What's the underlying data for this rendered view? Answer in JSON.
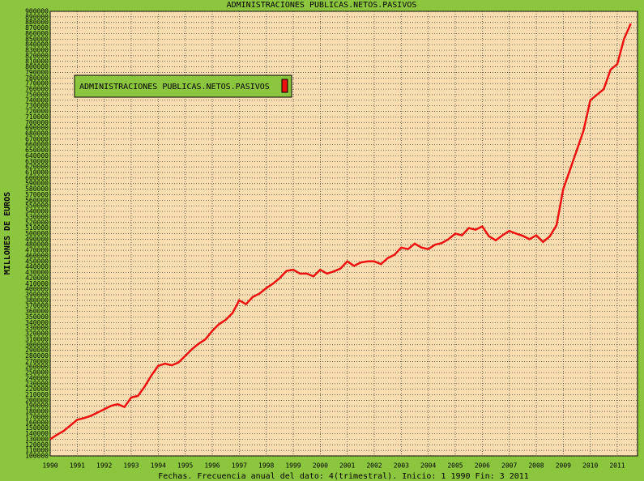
{
  "chart_data": {
    "type": "line",
    "title": "ADMINISTRACIONES PUBLICAS.NETOS.PASIVOS",
    "ylabel": "MILLONES DE EUROS",
    "xlabel": "Fechas. Frecuencia anual del dato: 4(trimestral). Inicio: 1 1990 Fin: 3 2011",
    "x": [
      1990,
      1990.25,
      1990.5,
      1990.75,
      1991,
      1991.25,
      1991.5,
      1991.75,
      1992,
      1992.25,
      1992.5,
      1992.75,
      1993,
      1993.25,
      1993.5,
      1993.75,
      1994,
      1994.25,
      1994.5,
      1994.75,
      1995,
      1995.25,
      1995.5,
      1995.75,
      1996,
      1996.25,
      1996.5,
      1996.75,
      1997,
      1997.25,
      1997.5,
      1997.75,
      1998,
      1998.25,
      1998.5,
      1998.75,
      1999,
      1999.25,
      1999.5,
      1999.75,
      2000,
      2000.25,
      2000.5,
      2000.75,
      2001,
      2001.25,
      2001.5,
      2001.75,
      2002,
      2002.25,
      2002.5,
      2002.75,
      2003,
      2003.25,
      2003.5,
      2003.75,
      2004,
      2004.25,
      2004.5,
      2004.75,
      2005,
      2005.25,
      2005.5,
      2005.75,
      2006,
      2006.25,
      2006.5,
      2006.75,
      2007,
      2007.25,
      2007.5,
      2007.75,
      2008,
      2008.25,
      2008.5,
      2008.75,
      2009,
      2009.25,
      2009.5,
      2009.75,
      2010,
      2010.25,
      2010.5,
      2010.75,
      2011,
      2011.25,
      2011.5
    ],
    "series": [
      {
        "name": "ADMINISTRACIONES PUBLICAS.NETOS.PASIVOS",
        "color": "#ee1111",
        "values": [
          130000,
          138000,
          145000,
          155000,
          165000,
          168000,
          172000,
          178000,
          184000,
          190000,
          193000,
          188000,
          205000,
          208000,
          225000,
          245000,
          262000,
          266000,
          263000,
          268000,
          280000,
          292000,
          302000,
          310000,
          325000,
          337000,
          345000,
          357000,
          380000,
          373000,
          386000,
          392000,
          402000,
          410000,
          420000,
          433000,
          435000,
          428000,
          428000,
          423000,
          435000,
          428000,
          432000,
          437000,
          450000,
          442000,
          448000,
          450000,
          450000,
          445000,
          456000,
          462000,
          475000,
          472000,
          482000,
          475000,
          472000,
          480000,
          483000,
          490000,
          500000,
          497000,
          510000,
          507000,
          513000,
          495000,
          488000,
          497000,
          505000,
          500000,
          496000,
          490000,
          497000,
          485000,
          495000,
          515000,
          580000,
          615000,
          650000,
          685000,
          740000,
          750000,
          760000,
          795000,
          805000,
          850000,
          878000
        ]
      }
    ],
    "xlim": [
      1990,
      2011.75
    ],
    "xticks": [
      1990,
      1991,
      1992,
      1993,
      1994,
      1995,
      1996,
      1997,
      1998,
      1999,
      2000,
      2001,
      2002,
      2003,
      2004,
      2005,
      2006,
      2007,
      2008,
      2009,
      2010,
      2011
    ],
    "ylim": [
      100000,
      900000
    ],
    "yticks": [
      100000,
      110000,
      120000,
      130000,
      140000,
      150000,
      160000,
      170000,
      180000,
      190000,
      200000,
      210000,
      220000,
      230000,
      240000,
      250000,
      260000,
      270000,
      280000,
      290000,
      300000,
      310000,
      320000,
      330000,
      340000,
      350000,
      360000,
      370000,
      380000,
      390000,
      400000,
      410000,
      420000,
      430000,
      440000,
      450000,
      460000,
      470000,
      480000,
      490000,
      500000,
      510000,
      520000,
      530000,
      540000,
      550000,
      560000,
      570000,
      580000,
      590000,
      600000,
      610000,
      620000,
      630000,
      640000,
      650000,
      660000,
      670000,
      680000,
      690000,
      700000,
      710000,
      720000,
      730000,
      740000,
      750000,
      760000,
      770000,
      780000,
      790000,
      800000,
      810000,
      820000,
      830000,
      840000,
      850000,
      860000,
      870000,
      880000,
      890000,
      900000
    ],
    "grid": true
  }
}
